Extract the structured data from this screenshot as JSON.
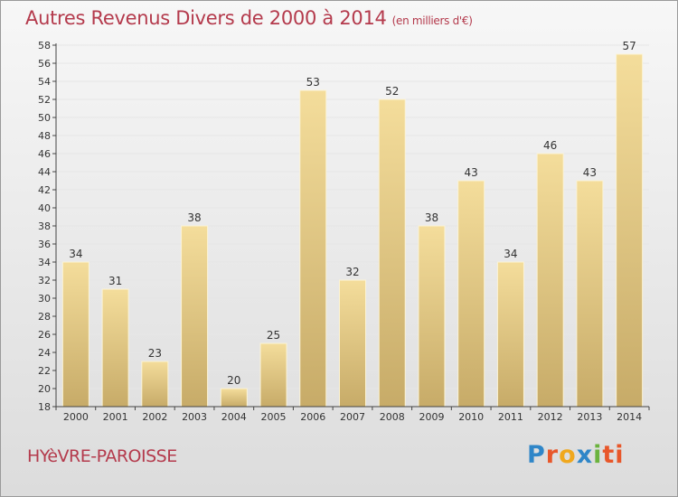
{
  "header": {
    "title": "Autres Revenus Divers de 2000 à 2014",
    "unit": "(en milliers d'€)"
  },
  "footer": {
    "commune": "HYèVRE-PAROISSE",
    "logo": "Proxiti"
  },
  "colors": {
    "bar_top": "#f4dd9b",
    "bar_bottom": "#c7ab68",
    "title": "#b43a4c",
    "grid": "#e6e6e6"
  },
  "chart_data": {
    "type": "bar",
    "title": "Autres Revenus Divers de 2000 à 2014",
    "xlabel": "",
    "ylabel": "",
    "categories": [
      "2000",
      "2001",
      "2002",
      "2003",
      "2004",
      "2005",
      "2006",
      "2007",
      "2008",
      "2009",
      "2010",
      "2011",
      "2012",
      "2013",
      "2014"
    ],
    "values": [
      34,
      31,
      23,
      38,
      20,
      25,
      53,
      32,
      52,
      38,
      43,
      34,
      46,
      43,
      57
    ],
    "ylim": [
      18,
      58
    ],
    "ytick_step": 2,
    "grid": true,
    "legend": "none"
  }
}
